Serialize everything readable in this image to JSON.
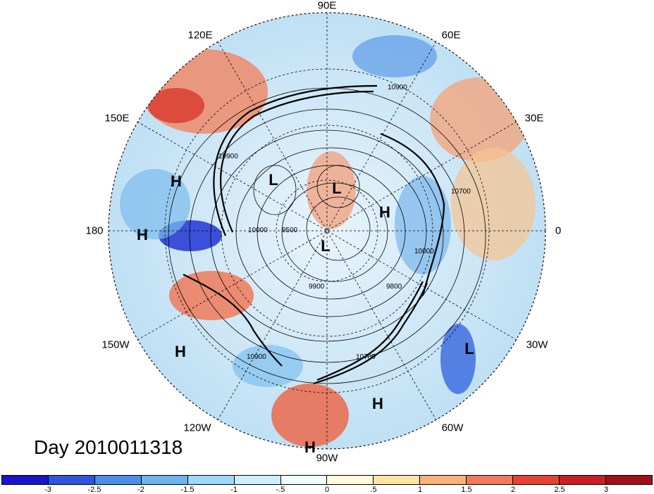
{
  "title": "Day 2010011318",
  "longitude_labels": [
    "90E",
    "60E",
    "30E",
    "0",
    "30W",
    "60W",
    "90W",
    "120W",
    "150W",
    "180",
    "150E",
    "120E"
  ],
  "pressure_centers": [
    "H",
    "L",
    "L",
    "H",
    "H",
    "L",
    "H",
    "L",
    "H",
    "H"
  ],
  "contour_labels": [
    "10900",
    "10700",
    "10000",
    "9500",
    "9900",
    "9800",
    "10000",
    "10900",
    "10900",
    "10700"
  ],
  "colorbar": {
    "ticks": [
      "-3",
      "-2.5",
      "-2",
      "-1.5",
      "-1",
      "-.5",
      "0",
      ".5",
      "1",
      "1.5",
      "2",
      "2.5",
      "3"
    ],
    "colors": [
      "#1c13c8",
      "#2e55dd",
      "#4a8fe8",
      "#6fb3ef",
      "#9dd9f7",
      "#cdeffc",
      "#eefbff",
      "#fffbdc",
      "#fde3a4",
      "#f8b27c",
      "#f07a5c",
      "#e24334",
      "#c71f25",
      "#a0101c"
    ]
  }
}
